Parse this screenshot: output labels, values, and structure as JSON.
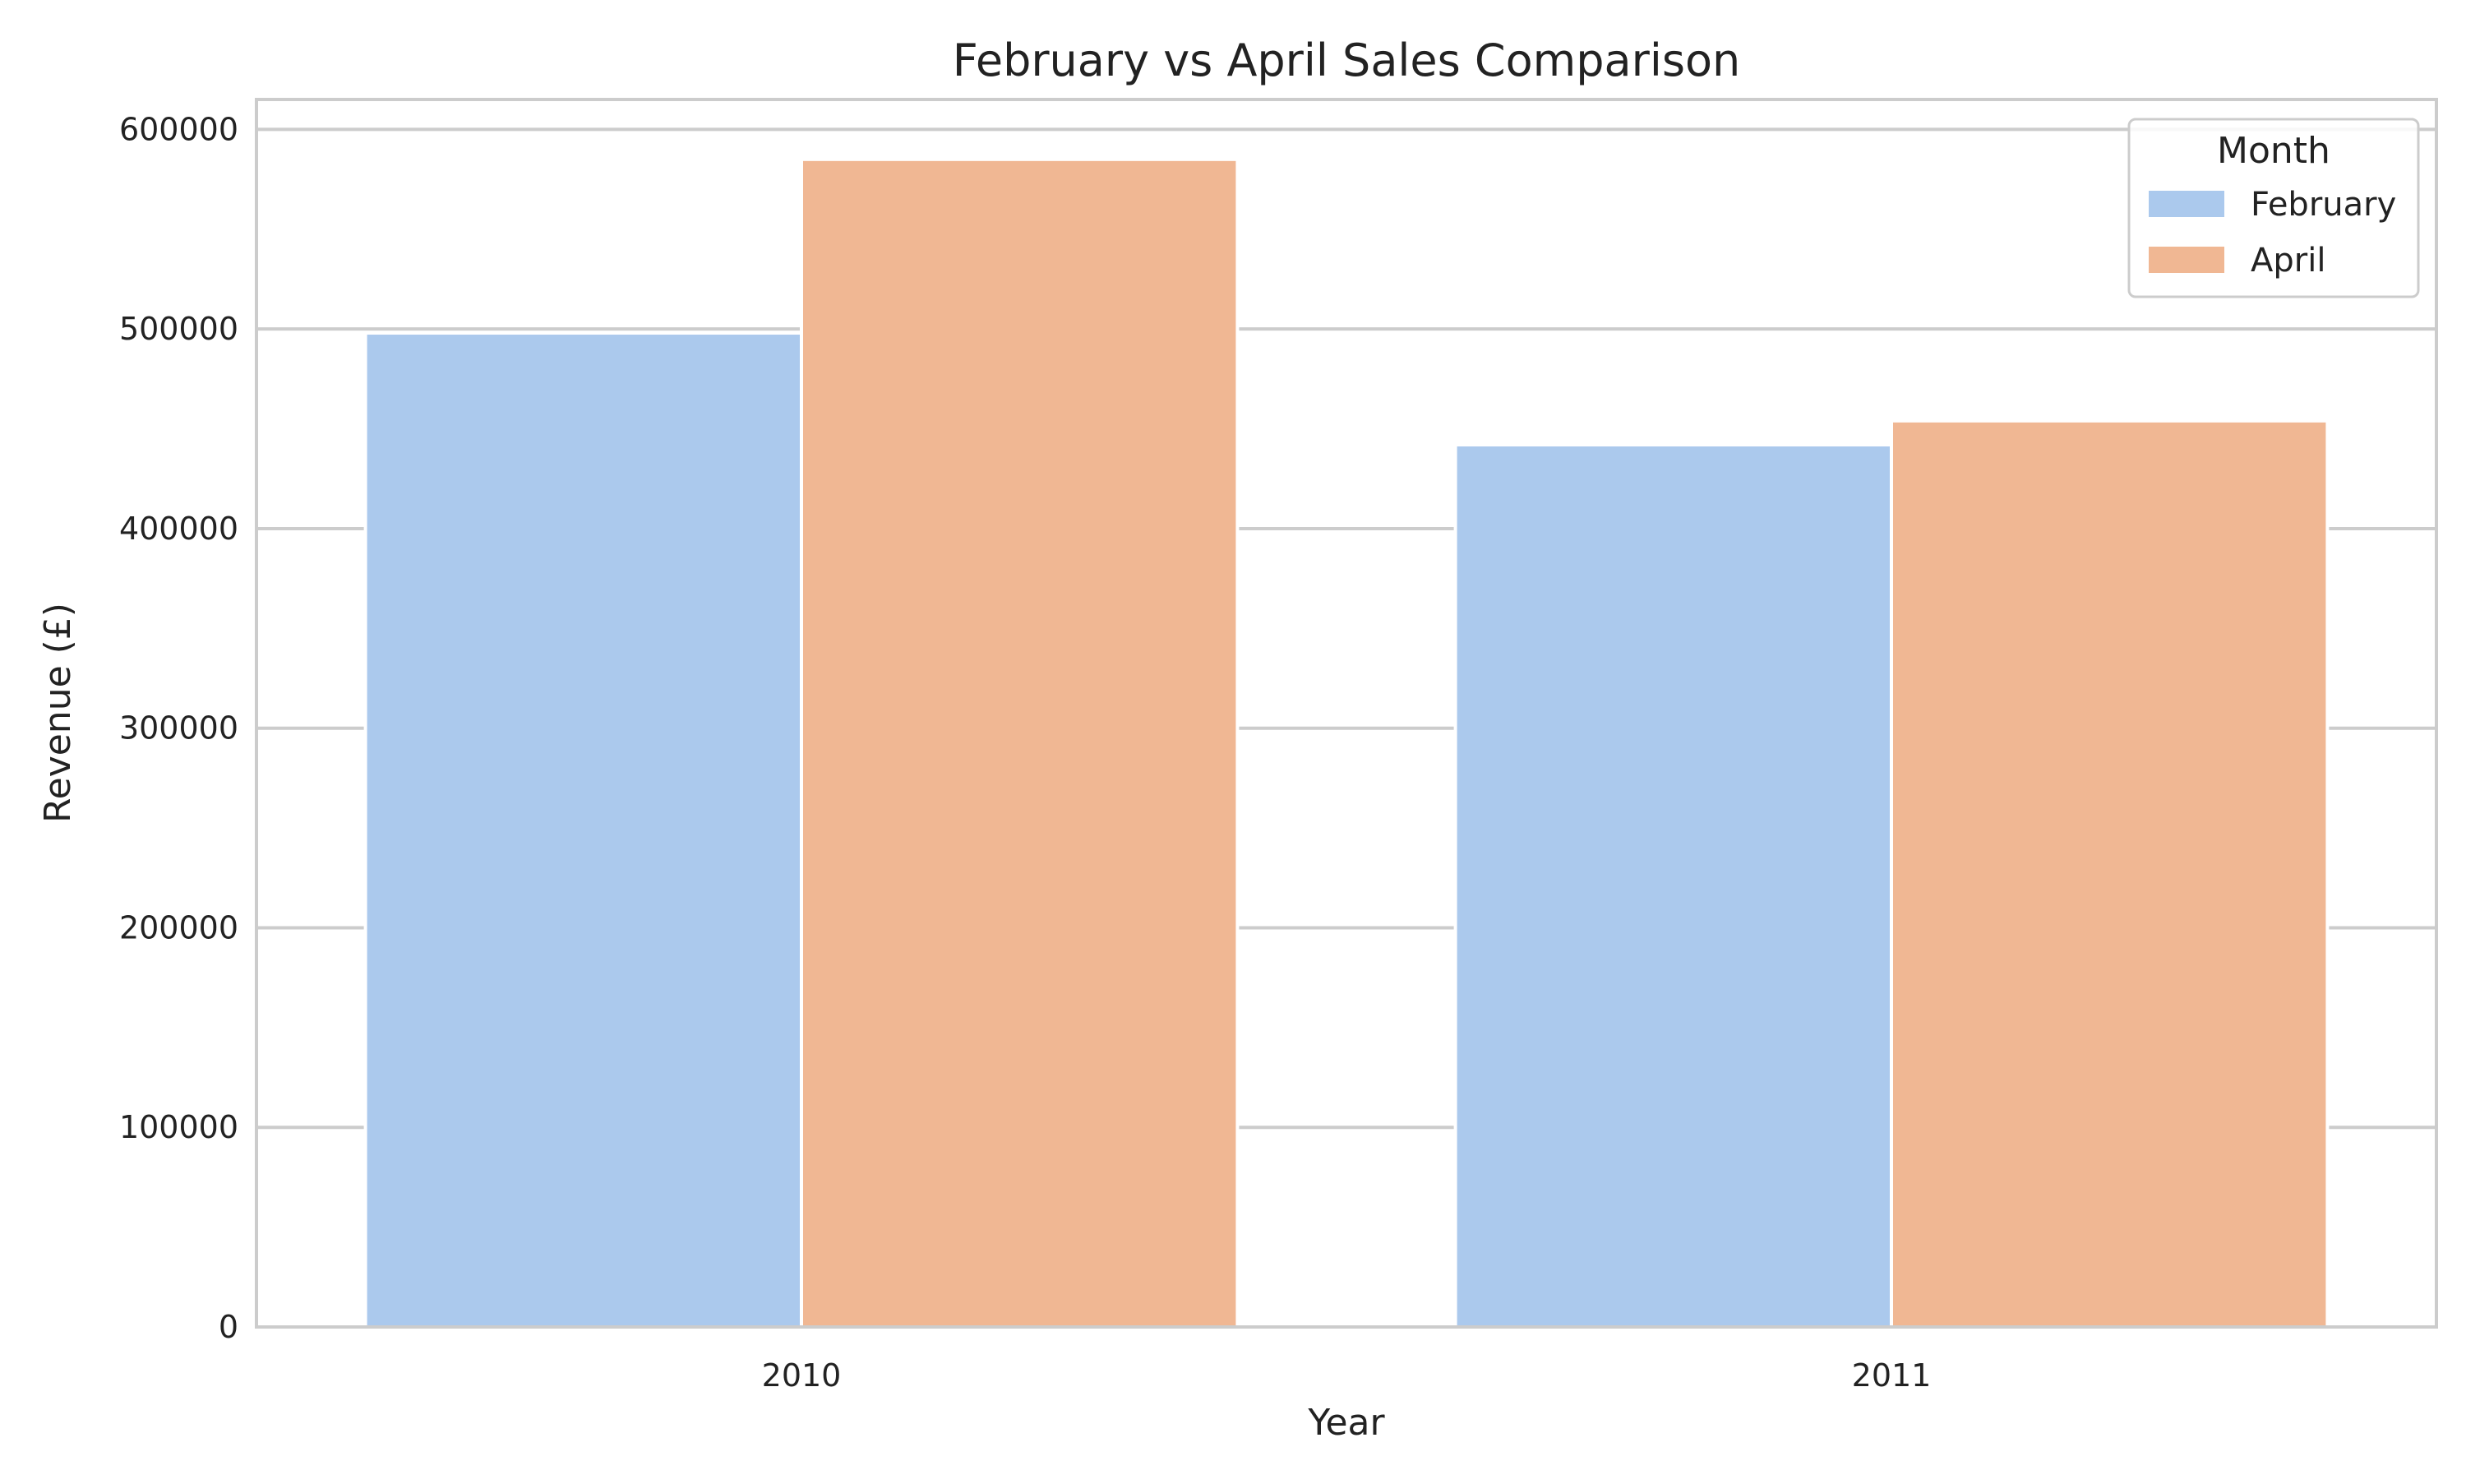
{
  "chart_data": {
    "type": "bar",
    "title": "February vs April Sales Comparison",
    "xlabel": "Year",
    "ylabel": "Revenue (£)",
    "categories": [
      "2010",
      "2011"
    ],
    "series": [
      {
        "name": "February",
        "values": [
          498000,
          442000
        ],
        "color": "#abc9ed"
      },
      {
        "name": "April",
        "values": [
          585000,
          454000
        ],
        "color": "#f0b793"
      }
    ],
    "ylim": [
      0,
      615000
    ],
    "yticks": [
      0,
      100000,
      200000,
      300000,
      400000,
      500000,
      600000
    ],
    "ytick_labels": [
      "0",
      "100000",
      "200000",
      "300000",
      "400000",
      "500000",
      "600000"
    ],
    "grid": true,
    "legend": {
      "title": "Month",
      "placement": "top-right"
    }
  }
}
